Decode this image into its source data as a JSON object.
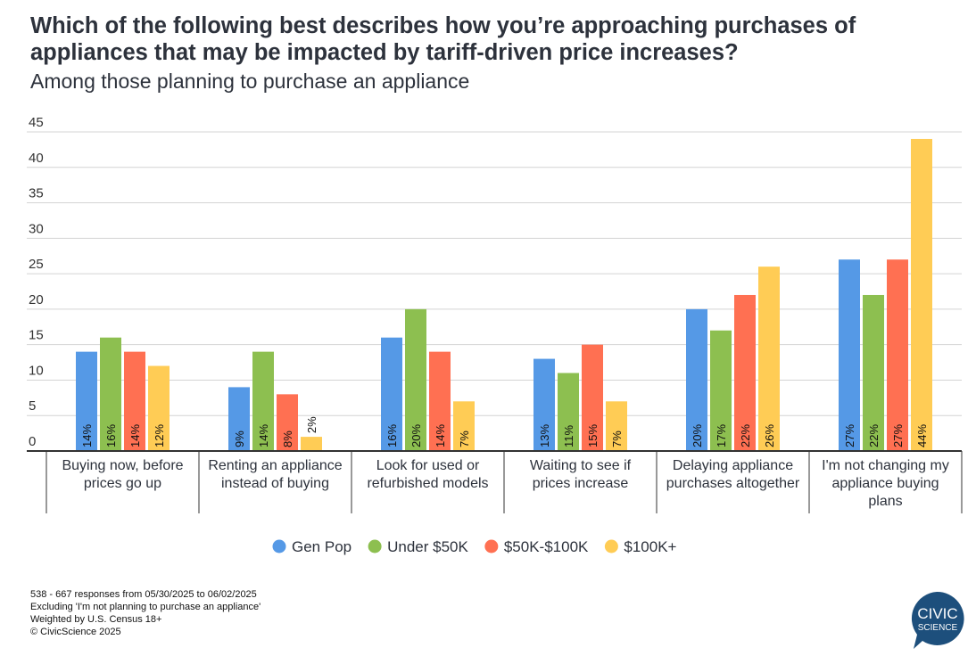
{
  "header": {
    "title": "Which of the following best describes how you’re approaching purchases of appliances that may be impacted by tariff-driven price increases?",
    "subtitle": "Among those planning to purchase an appliance"
  },
  "chart_data": {
    "type": "bar",
    "title": "Which of the following best describes how you’re approaching purchases of appliances that may be impacted by tariff-driven price increases?",
    "subtitle": "Among those planning to purchase an appliance",
    "xlabel": "",
    "ylabel": "",
    "ylim": [
      0,
      45
    ],
    "yticks": [
      "0",
      "5",
      "10",
      "15",
      "20",
      "25",
      "30",
      "35",
      "40",
      "45"
    ],
    "grid": true,
    "legend_position": "bottom",
    "categories": [
      [
        "Buying now, before",
        "prices go up"
      ],
      [
        "Renting an appliance",
        "instead of buying"
      ],
      [
        "Look for used or",
        "refurbished models"
      ],
      [
        "Waiting to see if",
        "prices increase"
      ],
      [
        "Delaying appliance",
        "purchases altogether"
      ],
      [
        "I'm not changing my",
        "appliance buying",
        "plans"
      ]
    ],
    "series": [
      {
        "name": "Gen Pop",
        "color": "#5599e6",
        "values": [
          14,
          9,
          16,
          13,
          20,
          27
        ],
        "labels": [
          "14%",
          "9%",
          "16%",
          "13%",
          "20%",
          "27%"
        ]
      },
      {
        "name": "Under $50K",
        "color": "#8dbf50",
        "values": [
          16,
          14,
          20,
          11,
          17,
          22
        ],
        "labels": [
          "16%",
          "14%",
          "20%",
          "11%",
          "17%",
          "22%"
        ]
      },
      {
        "name": "$50K-$100K",
        "color": "#ff7052",
        "values": [
          14,
          8,
          14,
          15,
          22,
          27
        ],
        "labels": [
          "14%",
          "8%",
          "14%",
          "15%",
          "22%",
          "27%"
        ]
      },
      {
        "name": "$100K+",
        "color": "#ffcc55",
        "values": [
          12,
          2,
          7,
          7,
          26,
          44
        ],
        "labels": [
          "12%",
          "2%",
          "7%",
          "7%",
          "26%",
          "44%"
        ]
      }
    ]
  },
  "footer": {
    "lines": [
      "538 - 667 responses from 05/30/2025 to 06/02/2025",
      "Excluding 'I'm not planning to purchase an appliance'",
      "Weighted by U.S. Census 18+",
      "© CivicScience 2025"
    ]
  },
  "logo": {
    "line1": "CIVIC",
    "line2": "SCIENCE",
    "color": "#1d4f7c"
  }
}
